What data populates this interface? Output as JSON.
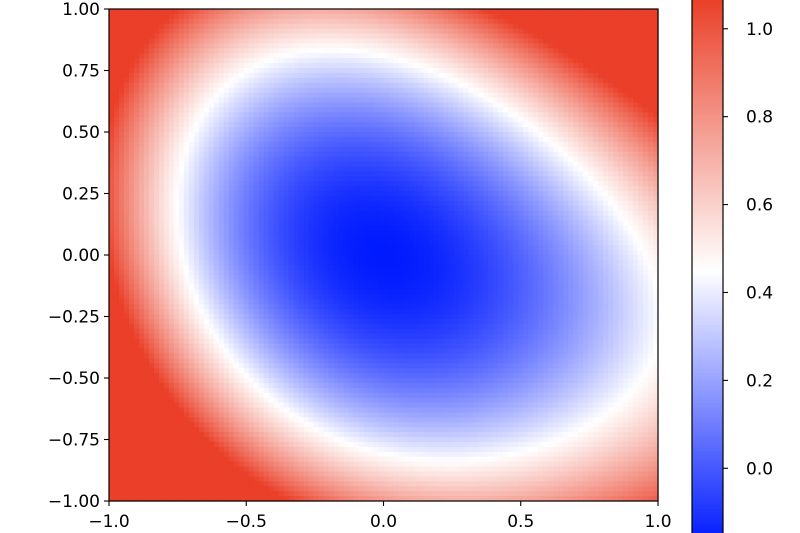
{
  "chart_data": {
    "type": "heatmap",
    "title": "",
    "xlabel": "",
    "ylabel": "",
    "xlim": [
      -1.0,
      1.0
    ],
    "ylim": [
      -1.0,
      1.0
    ],
    "x_ticks": [
      -1.0,
      -0.5,
      0.0,
      0.5,
      1.0
    ],
    "x_tick_labels": [
      "−1.0",
      "−0.5",
      "0.0",
      "0.5",
      "1.0"
    ],
    "y_ticks": [
      -1.0,
      -0.75,
      -0.5,
      -0.25,
      0.0,
      0.25,
      0.5,
      0.75,
      1.0
    ],
    "y_tick_labels": [
      "−1.00",
      "−0.75",
      "−0.50",
      "−0.25",
      "0.00",
      "0.25",
      "0.50",
      "0.75",
      "1.00"
    ],
    "colormap": "bwr",
    "colormap_low_color": "#0000ff",
    "colormap_mid_color": "#ffffff",
    "colormap_high_color": "#ff0000",
    "color_range": [
      -0.17,
      1.07
    ],
    "colorbar_ticks": [
      0.0,
      0.2,
      0.4,
      0.6,
      0.8,
      1.0
    ],
    "colorbar_tick_labels": [
      "0.0",
      "0.2",
      "0.4",
      "0.6",
      "0.8",
      "1.0"
    ],
    "field_minimum": {
      "x": 0.0,
      "y": 0.0,
      "value": -0.17
    },
    "field_low_lobe_direction": {
      "x": 1.0,
      "y": -0.25
    },
    "corner_values": {
      "top_left": 1.05,
      "top_right": 1.07,
      "bottom_left": 1.06,
      "bottom_right": 0.97
    }
  }
}
